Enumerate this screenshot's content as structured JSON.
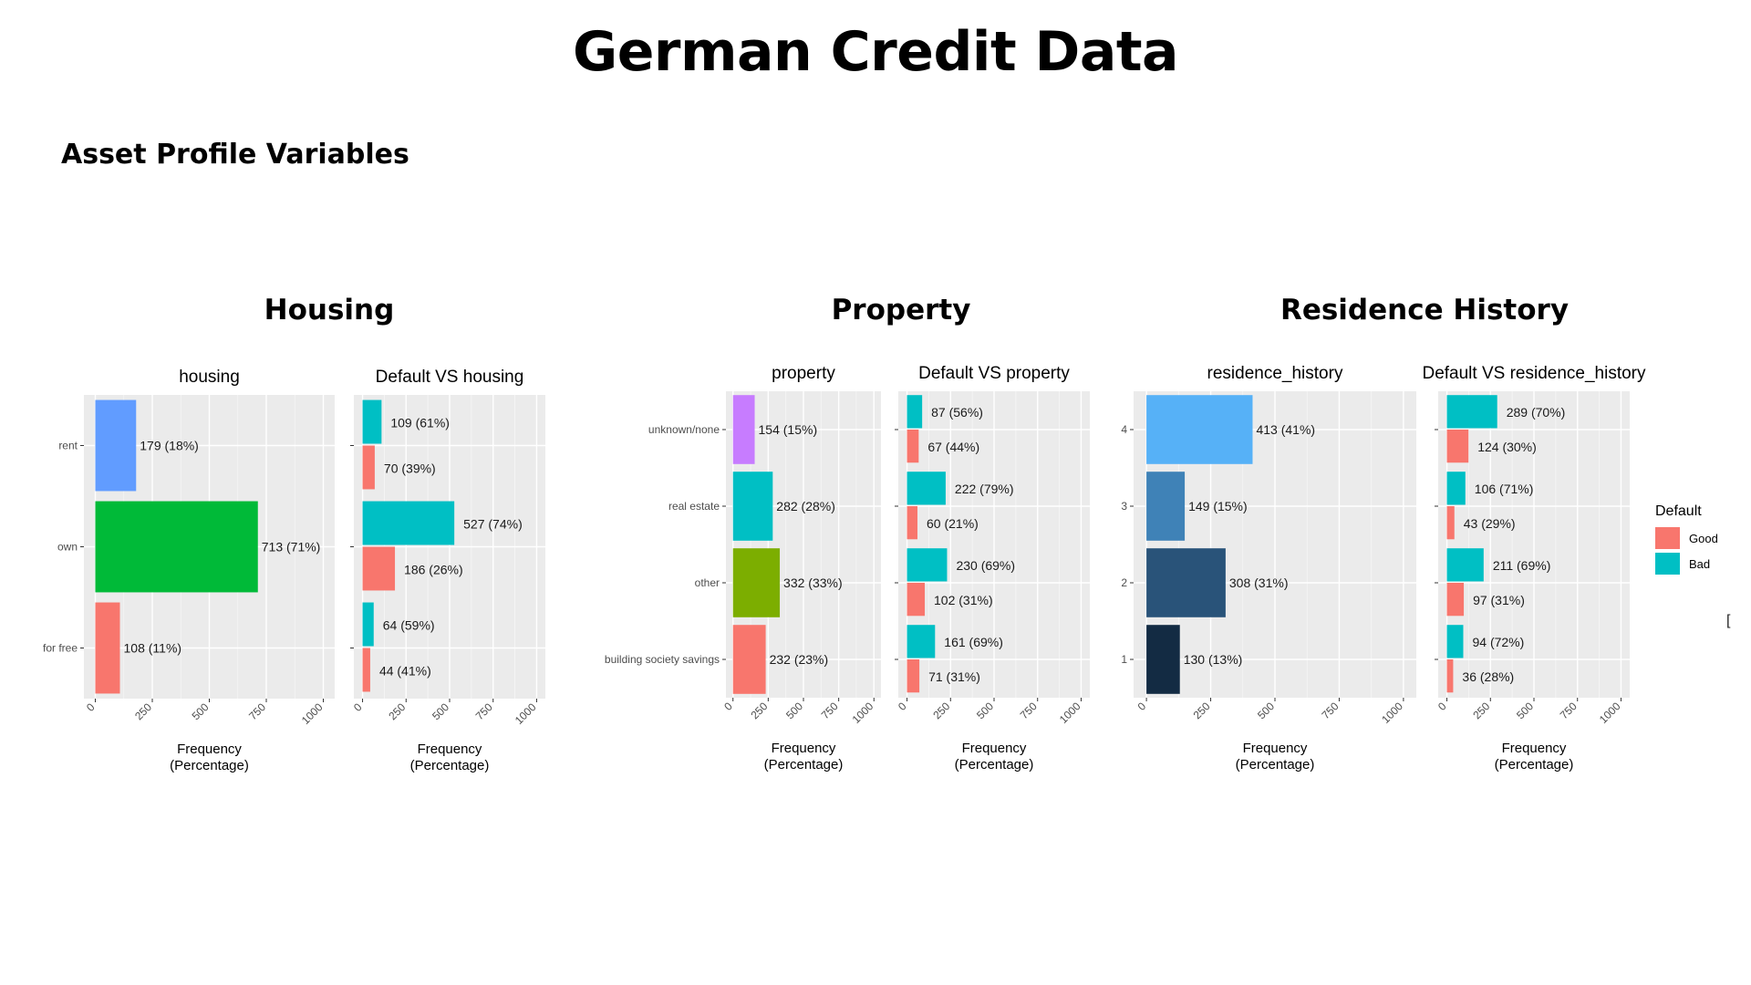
{
  "title": "German Credit Data",
  "subtitle": "Asset Profile Variables",
  "groups": [
    {
      "title": "Housing"
    },
    {
      "title": "Property"
    },
    {
      "title": "Residence History"
    }
  ],
  "legend": {
    "title": "Default",
    "items": [
      {
        "label": "Good",
        "color": "#F8766D"
      },
      {
        "label": "Bad",
        "color": "#00BFC4"
      }
    ]
  },
  "cursor_glyph": "[",
  "chart_data": [
    {
      "type": "bar",
      "orientation": "horizontal",
      "title": "housing",
      "xlabel": "Frequency\n(Percentage)",
      "categories": [
        "rent",
        "own",
        "for free"
      ],
      "values": [
        179,
        713,
        108
      ],
      "labels": [
        "179 (18%)",
        "713 (71%)",
        "108 (11%)"
      ],
      "colors": [
        "#619CFF",
        "#00BA38",
        "#F8766D"
      ],
      "xlim": [
        0,
        1000
      ],
      "xticks": [
        "0",
        "250",
        "500",
        "750",
        "1000"
      ]
    },
    {
      "type": "bar",
      "orientation": "horizontal",
      "title": "Default VS housing",
      "xlabel": "Frequency\n(Percentage)",
      "categories": [
        "rent",
        "own",
        "for free"
      ],
      "series": [
        {
          "name": "Bad",
          "color": "#00BFC4",
          "values": [
            109,
            527,
            64
          ],
          "labels": [
            "109 (61%)",
            "527 (74%)",
            "64 (59%)"
          ]
        },
        {
          "name": "Good",
          "color": "#F8766D",
          "values": [
            70,
            186,
            44
          ],
          "labels": [
            "70 (39%)",
            "186 (26%)",
            "44 (41%)"
          ]
        }
      ],
      "xlim": [
        0,
        1000
      ],
      "xticks": [
        "0",
        "250",
        "500",
        "750",
        "1000"
      ]
    },
    {
      "type": "bar",
      "orientation": "horizontal",
      "title": "property",
      "xlabel": "Frequency\n(Percentage)",
      "categories": [
        "unknown/none",
        "real estate",
        "other",
        "building society savings"
      ],
      "values": [
        154,
        282,
        332,
        232
      ],
      "labels": [
        "154 (15%)",
        "282 (28%)",
        "332 (33%)",
        "232 (23%)"
      ],
      "colors": [
        "#C77CFF",
        "#00BFC4",
        "#7CAE00",
        "#F8766D"
      ],
      "xlim": [
        0,
        1000
      ],
      "xticks": [
        "0",
        "250",
        "500",
        "750",
        "1000"
      ]
    },
    {
      "type": "bar",
      "orientation": "horizontal",
      "title": "Default VS property",
      "xlabel": "Frequency\n(Percentage)",
      "categories": [
        "unknown/none",
        "real estate",
        "other",
        "building society savings"
      ],
      "series": [
        {
          "name": "Bad",
          "color": "#00BFC4",
          "values": [
            87,
            222,
            230,
            161
          ],
          "labels": [
            "87 (56%)",
            "222 (79%)",
            "230 (69%)",
            "161 (69%)"
          ]
        },
        {
          "name": "Good",
          "color": "#F8766D",
          "values": [
            67,
            60,
            102,
            71
          ],
          "labels": [
            "67 (44%)",
            "60 (21%)",
            "102 (31%)",
            "71 (31%)"
          ]
        }
      ],
      "xlim": [
        0,
        1000
      ],
      "xticks": [
        "0",
        "250",
        "500",
        "750",
        "1000"
      ]
    },
    {
      "type": "bar",
      "orientation": "horizontal",
      "title": "residence_history",
      "xlabel": "Frequency\n(Percentage)",
      "categories": [
        "4",
        "3",
        "2",
        "1"
      ],
      "values": [
        413,
        149,
        308,
        130
      ],
      "labels": [
        "413 (41%)",
        "149 (15%)",
        "308 (31%)",
        "130 (13%)"
      ],
      "colors": [
        "#56B1F7",
        "#3F82B7",
        "#295379",
        "#132B43"
      ],
      "xlim": [
        0,
        1000
      ],
      "xticks": [
        "0",
        "250",
        "500",
        "750",
        "1000"
      ]
    },
    {
      "type": "bar",
      "orientation": "horizontal",
      "title": "Default VS residence_history",
      "xlabel": "Frequency\n(Percentage)",
      "categories": [
        "4",
        "3",
        "2",
        "1"
      ],
      "series": [
        {
          "name": "Bad",
          "color": "#00BFC4",
          "values": [
            289,
            106,
            211,
            94
          ],
          "labels": [
            "289 (70%)",
            "106 (71%)",
            "211 (69%)",
            "94 (72%)"
          ]
        },
        {
          "name": "Good",
          "color": "#F8766D",
          "values": [
            124,
            43,
            97,
            36
          ],
          "labels": [
            "124 (30%)",
            "43 (29%)",
            "97 (31%)",
            "36 (28%)"
          ]
        }
      ],
      "xlim": [
        0,
        1000
      ],
      "xticks": [
        "0",
        "250",
        "500",
        "750",
        "1000"
      ]
    }
  ]
}
